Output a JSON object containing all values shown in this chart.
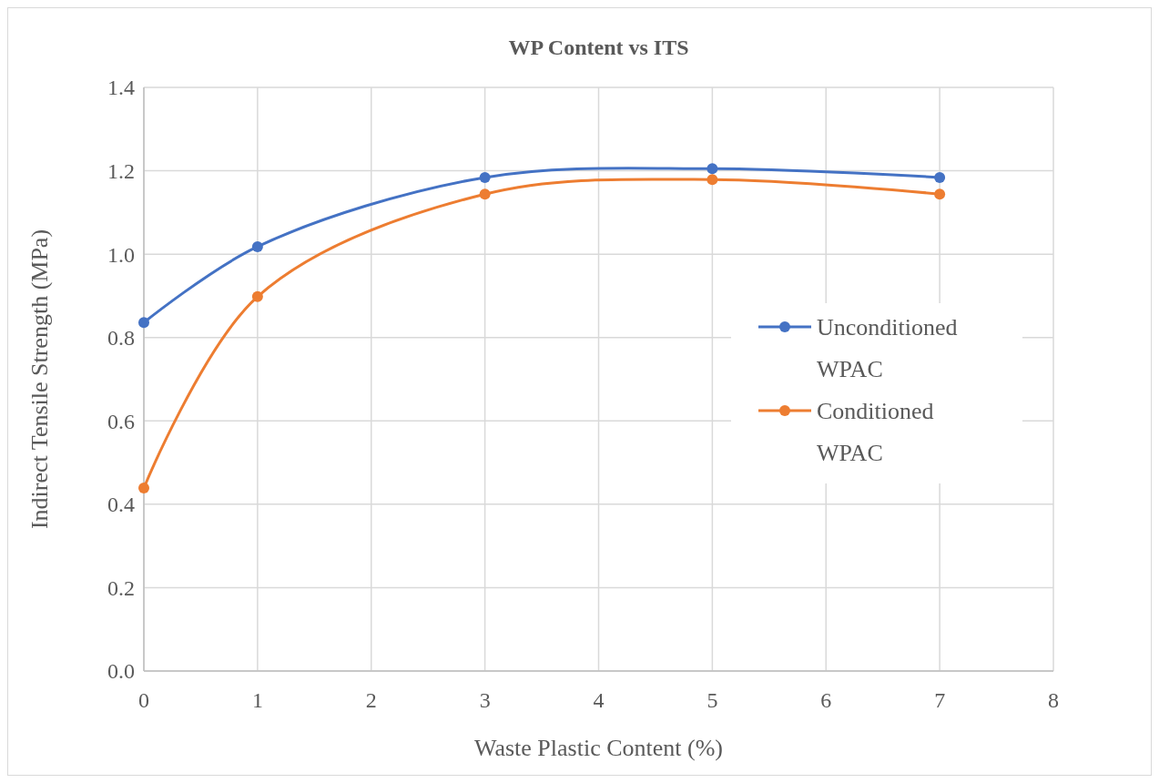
{
  "chart_data": {
    "type": "line",
    "title": "WP Content vs ITS",
    "xlabel": "Waste Plastic Content (%)",
    "ylabel": "Indirect Tensile Strength (MPa)",
    "x": [
      0,
      1,
      3,
      5,
      7
    ],
    "series": [
      {
        "name": "Unconditioned WPAC",
        "color": "#4472c4",
        "values": [
          0.836,
          1.018,
          1.184,
          1.205,
          1.184
        ]
      },
      {
        "name": "Conditioned WPAC",
        "color": "#ed7d31",
        "values": [
          0.439,
          0.898,
          1.144,
          1.179,
          1.144
        ]
      }
    ],
    "xlim": [
      0,
      8
    ],
    "xticks": [
      0,
      1,
      2,
      3,
      4,
      5,
      6,
      7,
      8
    ],
    "ylim": [
      0,
      1.4
    ],
    "yticks": [
      {
        "value": 0,
        "label": "0.0"
      },
      {
        "value": 0.2,
        "label": "0.2"
      },
      {
        "value": 0.4,
        "label": "0.4"
      },
      {
        "value": 0.6,
        "label": "0.6"
      },
      {
        "value": 0.8,
        "label": "0.8"
      },
      {
        "value": 1,
        "label": "1.0"
      },
      {
        "value": 1.2,
        "label": "1.2"
      },
      {
        "value": 1.4,
        "label": "1.4"
      }
    ],
    "grid": true,
    "legend": "right",
    "marker": "circle",
    "line_style": "solid"
  }
}
